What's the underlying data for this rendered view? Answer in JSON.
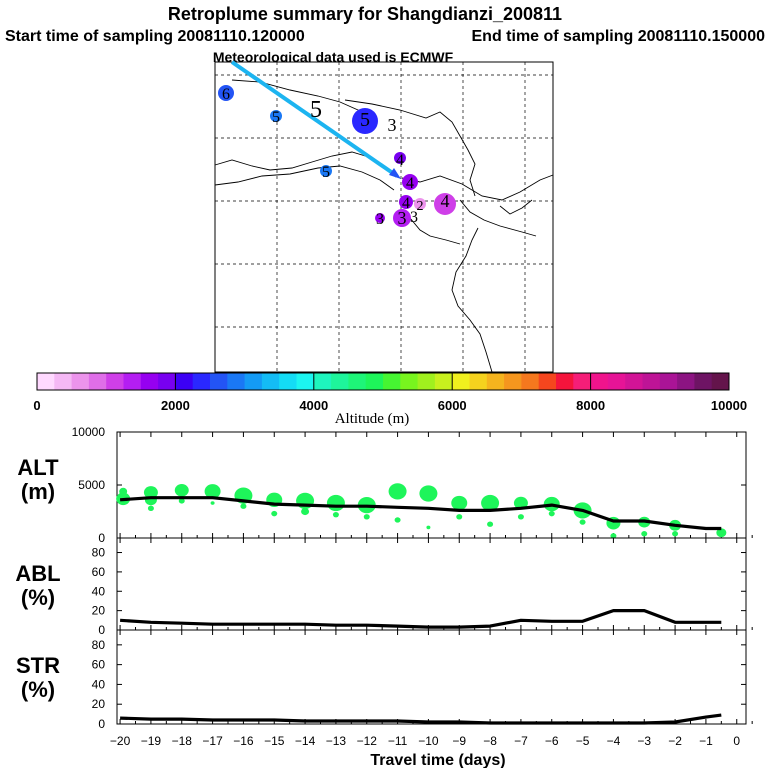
{
  "header": {
    "title": "Retroplume summary for Shangdianzi_200811",
    "start": "Start time of sampling 20081110.120000",
    "end": "End time of sampling 20081110.150000",
    "met": "Meteorological data used is ECMWF"
  },
  "colors": {
    "scale": [
      "#ffd9ff",
      "#f5b8f5",
      "#ec94ec",
      "#df6ee8",
      "#cf3fe8",
      "#b41ef2",
      "#9600f0",
      "#7800f0",
      "#3c00f5",
      "#2a28ff",
      "#2354f5",
      "#1a78f5",
      "#149bf5",
      "#14bcf5",
      "#14dcf5",
      "#1cf5f0",
      "#1ef5be",
      "#1ef59b",
      "#1ef578",
      "#1ef55a",
      "#46f532",
      "#78f51e",
      "#a0f01e",
      "#c8f01e",
      "#f0f01e",
      "#f5d21e",
      "#f5b41e",
      "#f5961e",
      "#f5781e",
      "#f5461e",
      "#f5143c",
      "#f51e78",
      "#f0148c",
      "#e61496",
      "#d21496",
      "#be1496",
      "#aa1496",
      "#8c1482",
      "#6e1464",
      "#64144b"
    ],
    "trajectory": "#1cb4f0",
    "alt_markers": "#1ef55a"
  },
  "map": {
    "cluster_labels": [
      "6",
      "5",
      "5",
      "5",
      "5",
      "3",
      "4",
      "4",
      "4",
      "4",
      "3",
      "3",
      "2",
      "3"
    ]
  },
  "colorbar": {
    "label": "Altitude (m)",
    "ticks": [
      "0",
      "2000",
      "4000",
      "6000",
      "8000",
      "10000"
    ]
  },
  "chart_data": [
    {
      "type": "line",
      "panel": "ALT",
      "ylabel": "ALT\n(m)",
      "ylabel_lines": [
        "ALT",
        "(m)"
      ],
      "ylim": [
        0,
        10000
      ],
      "yticks": [
        "10000",
        "5000",
        "0"
      ],
      "ytick_values": [
        10000,
        5000,
        0
      ],
      "x": [
        -20,
        -19,
        -18,
        -17,
        -16,
        -15,
        -14,
        -13,
        -12,
        -11,
        -10,
        -9,
        -8,
        -7,
        -6,
        -5,
        -4,
        -3,
        -2,
        -1,
        -0.5
      ],
      "median_line": [
        3600,
        3800,
        3800,
        3800,
        3500,
        3200,
        3100,
        3000,
        3000,
        2900,
        2800,
        2600,
        2600,
        2800,
        3100,
        2600,
        1600,
        1600,
        1200,
        900,
        900
      ],
      "marker_values": [
        [
          -19.9,
          3700
        ],
        [
          -19.9,
          4400
        ],
        [
          -19.0,
          3600
        ],
        [
          -19.0,
          2800
        ],
        [
          -19.0,
          4300
        ],
        [
          -18.0,
          3500
        ],
        [
          -18.0,
          4500
        ],
        [
          -17.0,
          3300
        ],
        [
          -17.0,
          4400
        ],
        [
          -16.0,
          3000
        ],
        [
          -16.0,
          4000
        ],
        [
          -15.0,
          2300
        ],
        [
          -15.0,
          3600
        ],
        [
          -14.0,
          2500
        ],
        [
          -14.0,
          3500
        ],
        [
          -13.0,
          2200
        ],
        [
          -13.0,
          3300
        ],
        [
          -12.0,
          2000
        ],
        [
          -12.0,
          3100
        ],
        [
          -11.0,
          1700
        ],
        [
          -11.0,
          4400
        ],
        [
          -10.0,
          1000
        ],
        [
          -10.0,
          4200
        ],
        [
          -9.0,
          2000
        ],
        [
          -9.0,
          3300
        ],
        [
          -8.0,
          1300
        ],
        [
          -8.0,
          3300
        ],
        [
          -7.0,
          2000
        ],
        [
          -7.0,
          3300
        ],
        [
          -6.0,
          2300
        ],
        [
          -6.0,
          3200
        ],
        [
          -5.0,
          1500
        ],
        [
          -5.0,
          2600
        ],
        [
          -4.0,
          200
        ],
        [
          -4.0,
          1400
        ],
        [
          -3.0,
          400
        ],
        [
          -3.0,
          1500
        ],
        [
          -2.0,
          400
        ],
        [
          -2.0,
          1200
        ],
        [
          -0.5,
          500
        ]
      ]
    },
    {
      "type": "line",
      "panel": "ABL",
      "ylabel": "ABL\n(%)",
      "ylabel_lines": [
        "ABL",
        "(%)"
      ],
      "ylim": [
        0,
        95
      ],
      "yticks": [
        "80",
        "60",
        "40",
        "20",
        "0"
      ],
      "ytick_values": [
        80,
        60,
        40,
        20,
        0
      ],
      "x": [
        -20,
        -19,
        -18,
        -17,
        -16,
        -15,
        -14,
        -13,
        -12,
        -11,
        -10,
        -9,
        -8,
        -7,
        -6,
        -5,
        -4,
        -3,
        -2,
        -1,
        -0.5
      ],
      "values": [
        10,
        8,
        7,
        6,
        6,
        6,
        6,
        5,
        5,
        4,
        3,
        3,
        4,
        10,
        9,
        9,
        20,
        20,
        8,
        8,
        8
      ]
    },
    {
      "type": "line",
      "panel": "STR",
      "ylabel": "STR\n(%)",
      "ylabel_lines": [
        "STR",
        "(%)"
      ],
      "ylim": [
        0,
        95
      ],
      "yticks": [
        "80",
        "60",
        "40",
        "20",
        "0"
      ],
      "ytick_values": [
        80,
        60,
        40,
        20,
        0
      ],
      "x": [
        -20,
        -19,
        -18,
        -17,
        -16,
        -15,
        -14,
        -13,
        -12,
        -11,
        -10,
        -9,
        -8,
        -7,
        -6,
        -5,
        -4,
        -3,
        -2,
        -1,
        -0.5
      ],
      "values": [
        6,
        5,
        5,
        4,
        4,
        4,
        3,
        3,
        3,
        3,
        2,
        2,
        1,
        1,
        1,
        1,
        1,
        1,
        2,
        7,
        9
      ]
    }
  ],
  "xaxis": {
    "label": "Travel time (days)",
    "ticks": [
      "−20",
      "−19",
      "−18",
      "−17",
      "−16",
      "−15",
      "−14",
      "−13",
      "−12",
      "−11",
      "−10",
      "−9",
      "−8",
      "−7",
      "−6",
      "−5",
      "−4",
      "−3",
      "−2",
      "−1",
      "0"
    ]
  }
}
